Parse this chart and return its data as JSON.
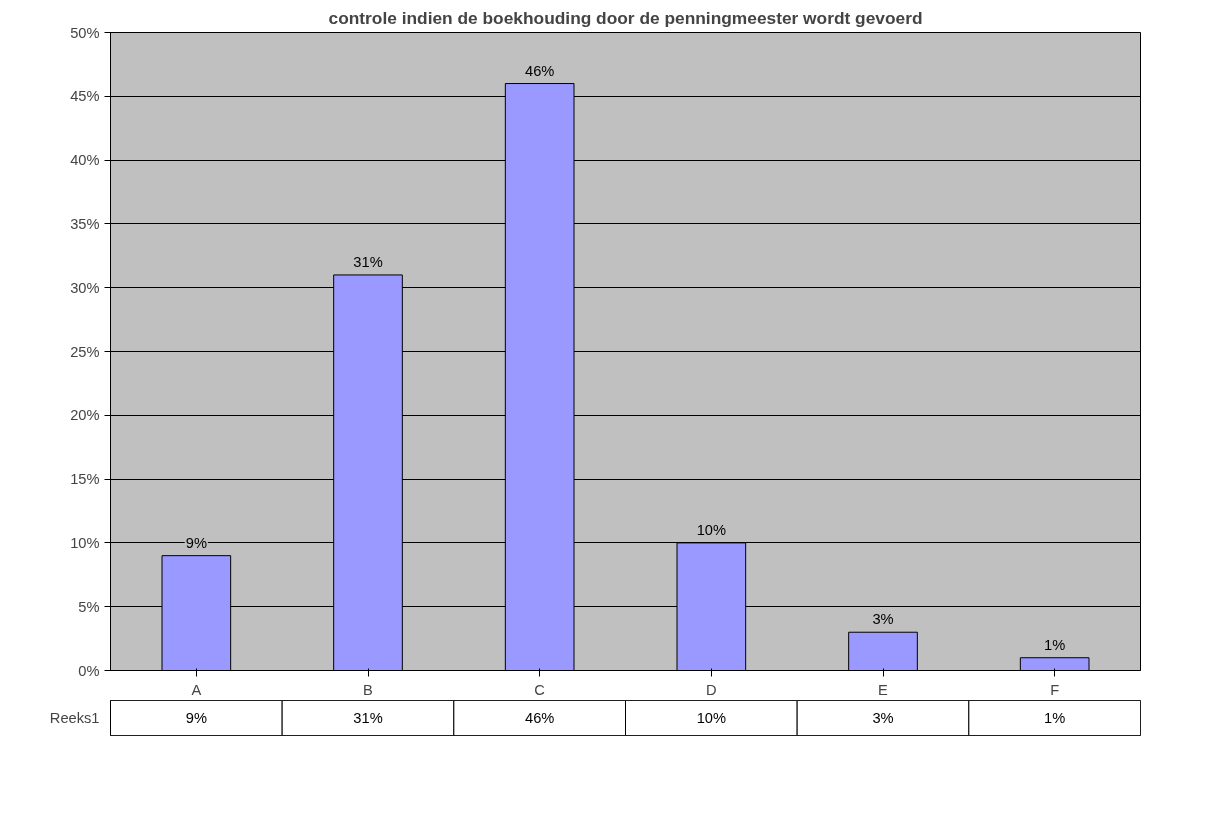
{
  "chart_data": {
    "type": "bar",
    "title": "controle indien de boekhouding door de penningmeester wordt gevoerd",
    "categories": [
      "A",
      "B",
      "C",
      "D",
      "E",
      "F"
    ],
    "series": [
      {
        "name": "Reeks1",
        "color": "#9999ff",
        "values": [
          9,
          31,
          46,
          10,
          3,
          1
        ],
        "value_labels": [
          "9%",
          "31%",
          "46%",
          "10%",
          "3%",
          "1%"
        ]
      }
    ],
    "ylim": [
      0,
      50
    ],
    "yticks": [
      {
        "value": 0,
        "label": "0%"
      },
      {
        "value": 5,
        "label": "5%"
      },
      {
        "value": 10,
        "label": "10%"
      },
      {
        "value": 15,
        "label": "15%"
      },
      {
        "value": 20,
        "label": "20%"
      },
      {
        "value": 25,
        "label": "25%"
      },
      {
        "value": 30,
        "label": "30%"
      },
      {
        "value": 35,
        "label": "35%"
      },
      {
        "value": 40,
        "label": "40%"
      },
      {
        "value": 45,
        "label": "45%"
      },
      {
        "value": 50,
        "label": "50%"
      }
    ],
    "grid": "y"
  }
}
